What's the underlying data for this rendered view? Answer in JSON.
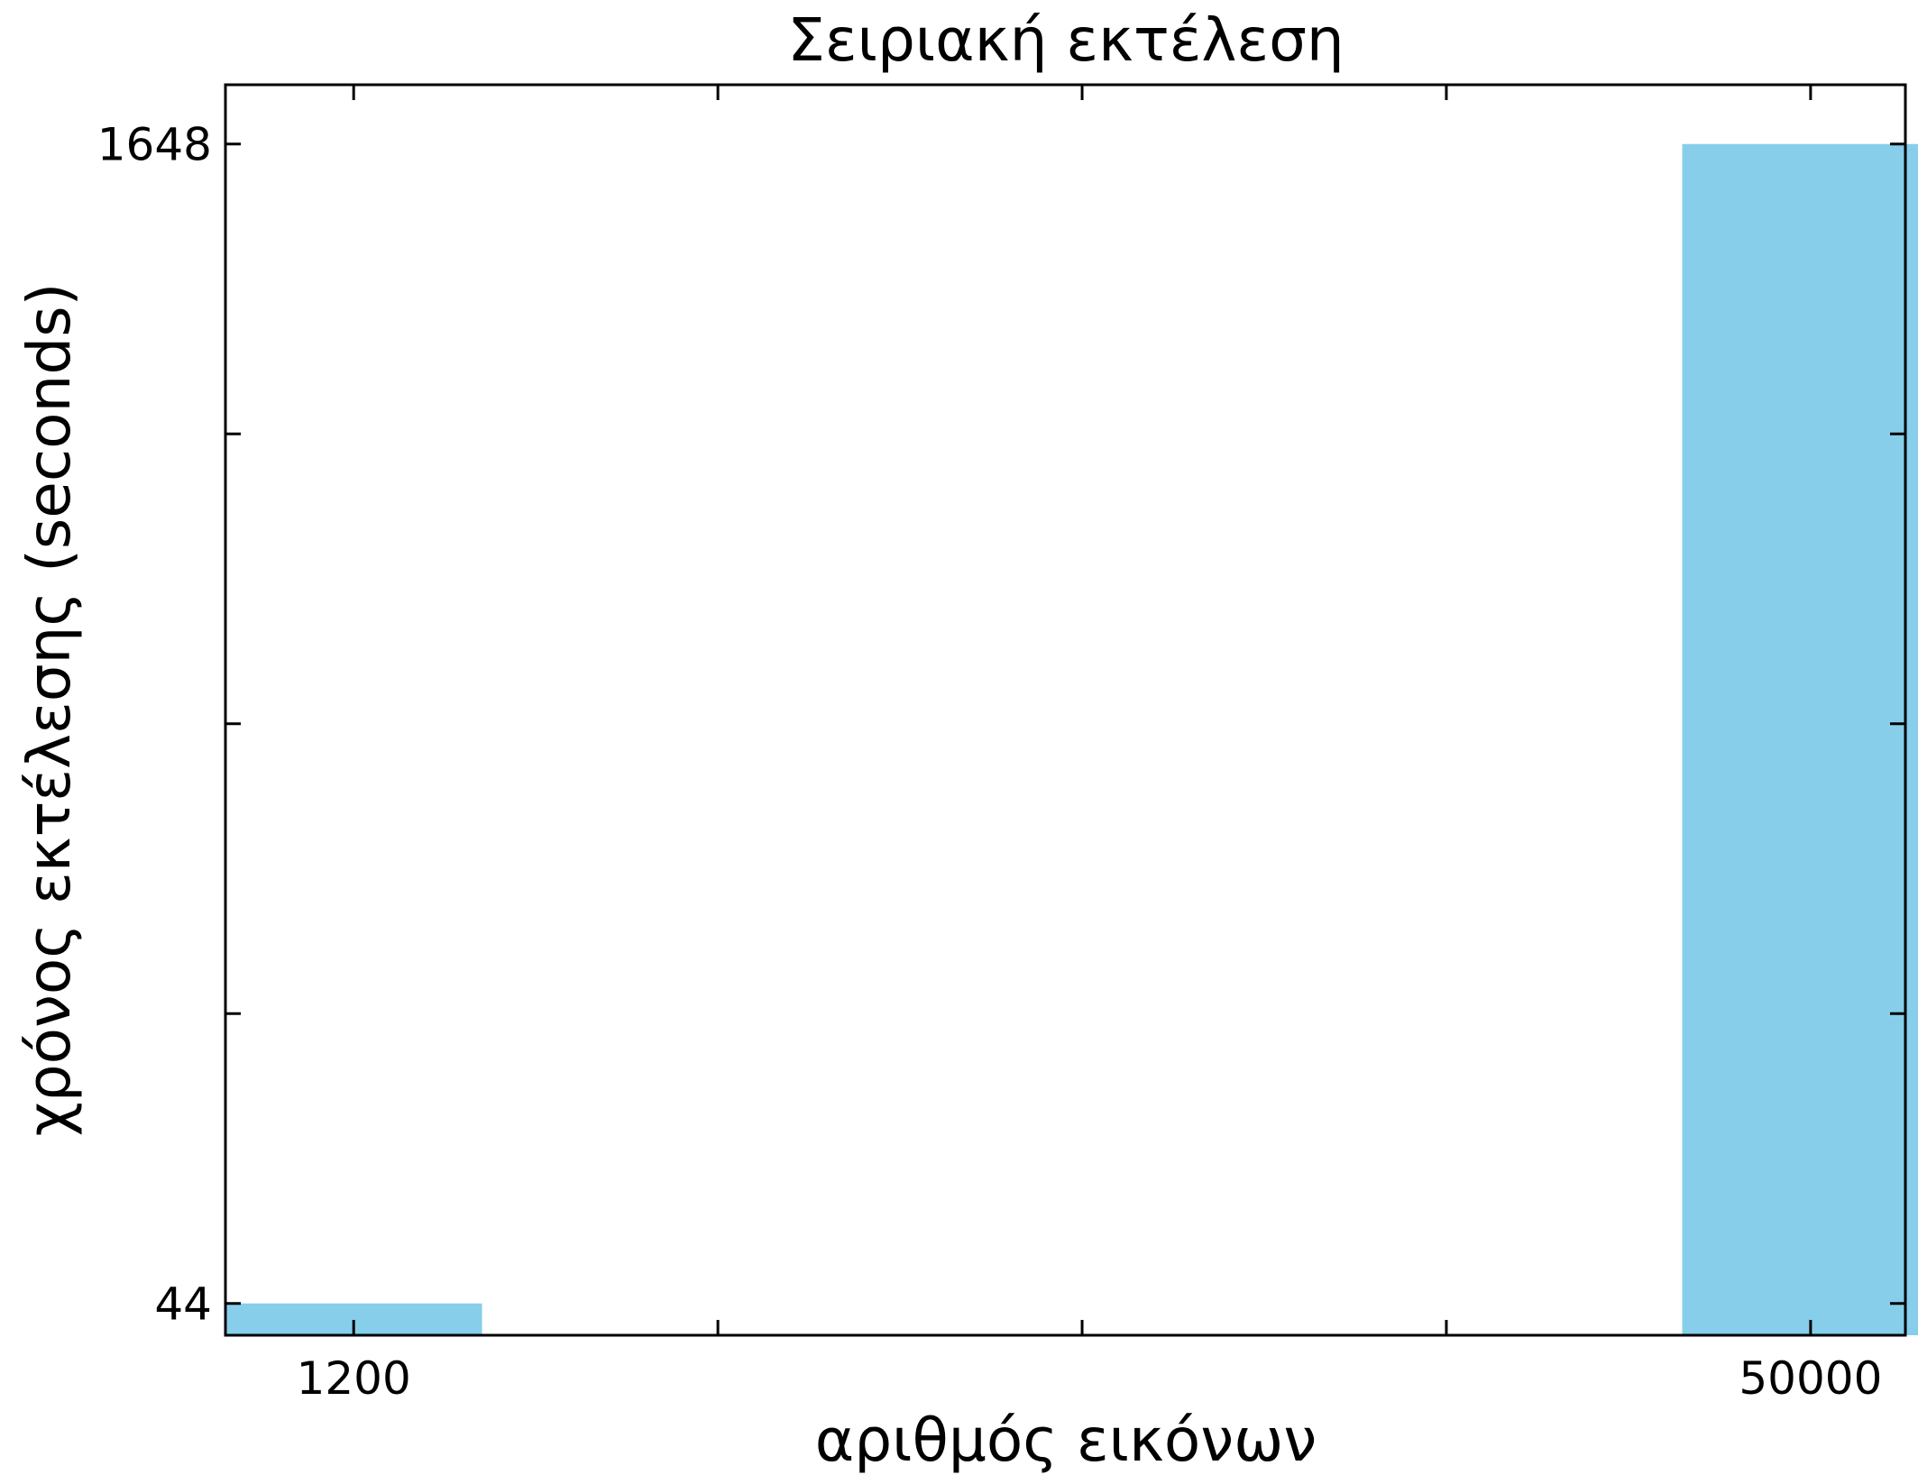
{
  "chart_data": {
    "type": "bar",
    "title": "Σειριακή εκτέλεση",
    "xlabel": "αριθμός εικόνων",
    "ylabel": "χρόνος εκτέλεσης (seconds)",
    "x": [
      1200,
      50000
    ],
    "x_tick_labels": [
      "1200",
      "50000"
    ],
    "values": [
      44,
      1648
    ],
    "y_tick_labels": [
      "44",
      "1648"
    ],
    "ylim": [
      0,
      1730
    ],
    "xlim": [
      -3095,
      53175
    ],
    "bar_width": 8600,
    "bar_color": "#87CEEB",
    "grid": false,
    "legend": "none"
  }
}
